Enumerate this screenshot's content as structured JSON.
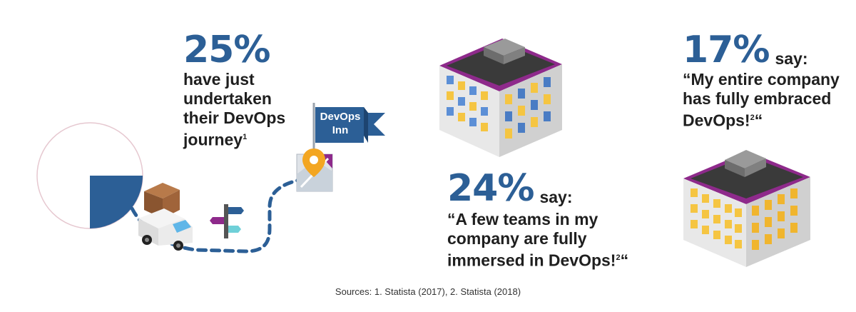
{
  "stats": [
    {
      "value": "25%",
      "lines": [
        "have just",
        "undertaken",
        "their DevOps",
        "journey"
      ],
      "note": "1"
    },
    {
      "value": "24%",
      "say": "say:",
      "lines": [
        "“A few teams in my",
        "company are fully",
        "immersed in DevOps!"
      ],
      "note": "2",
      "close": "“"
    },
    {
      "value": "17%",
      "say": "say:",
      "lines": [
        "“My entire company",
        "has fully embraced",
        "DevOps!"
      ],
      "note": "2",
      "close": "“"
    }
  ],
  "flag": {
    "line1": "DevOps",
    "line2": "Inn"
  },
  "pie": {
    "highlight_fraction": 0.25
  },
  "colors": {
    "accent": "#2c5f96",
    "purple": "#8e2a8b"
  },
  "sources": "Sources: 1. Statista (2017), 2. Statista (2018)"
}
